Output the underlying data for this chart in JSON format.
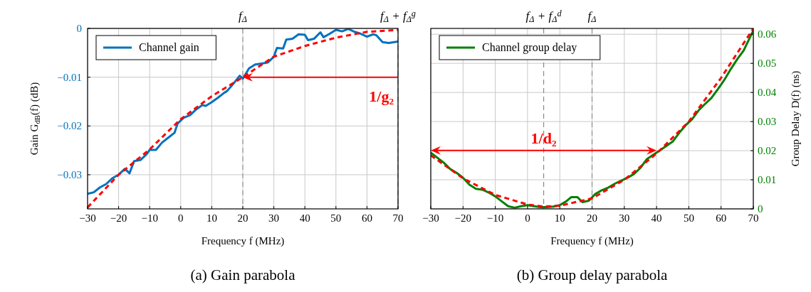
{
  "chart_data": [
    {
      "type": "line",
      "ylabel": "Gain G$_{dB}$(f) (dB)",
      "xlabel": "Frequency f (MHz)",
      "xlim": [
        -30,
        70
      ],
      "ylim": [
        -0.037,
        0
      ],
      "xticks": [
        {
          "value": -30,
          "label": "−30"
        },
        {
          "value": -20,
          "label": "−20"
        },
        {
          "value": -10,
          "label": "−10"
        },
        0,
        10,
        20,
        30,
        40,
        50,
        60,
        70
      ],
      "yticks": [
        {
          "value": -0.03,
          "label": "−0.03"
        },
        {
          "value": -0.02,
          "label": "−0.02"
        },
        {
          "value": -0.01,
          "label": "−0.01"
        },
        0
      ],
      "grid": true,
      "legend": "top left",
      "ref_lines": [
        {
          "axis": "x",
          "value": 20,
          "label": "f$_{Δ}$",
          "color": "#999999",
          "line_style": "dashed"
        },
        {
          "axis": "x",
          "value": 70,
          "label": "f$_{Δ}$ + f$_{Δ}$$^{g}$",
          "color": "#999999",
          "line_style": "dashed"
        }
      ],
      "annotations": [
        "(a) Gain parabola",
        {
          "text": "1/g₂",
          "x": 20,
          "y": -0.01
        }
      ],
      "series": [
        {
          "name": "Channel gain",
          "color": "#0072bd",
          "line_style": "solid",
          "x": [
            -30,
            -28,
            -26,
            -24,
            -22,
            -20,
            -18,
            -16.5,
            -15,
            -13,
            -11,
            -10,
            -8,
            -6,
            -4,
            -2,
            -1,
            1,
            3,
            5,
            7,
            8,
            10,
            12,
            14,
            15,
            17,
            19,
            20,
            22,
            24,
            26,
            28,
            30,
            31,
            33,
            34,
            36,
            38,
            40,
            41,
            43,
            45,
            46,
            48,
            50,
            52,
            54,
            56,
            58,
            60,
            62,
            63,
            65,
            67,
            70
          ],
          "values": [
            -0.0339,
            -0.0336,
            -0.0326,
            -0.0319,
            -0.0307,
            -0.03,
            -0.0288,
            -0.0297,
            -0.0272,
            -0.027,
            -0.0258,
            -0.0249,
            -0.0249,
            -0.0234,
            -0.0224,
            -0.0214,
            -0.0195,
            -0.0183,
            -0.0178,
            -0.0166,
            -0.0157,
            -0.0159,
            -0.0151,
            -0.0142,
            -0.0132,
            -0.0128,
            -0.0113,
            -0.0097,
            -0.0103,
            -0.0082,
            -0.0074,
            -0.0072,
            -0.007,
            -0.0058,
            -0.004,
            -0.0041,
            -0.0023,
            -0.0021,
            -0.0012,
            -0.0013,
            -0.0024,
            -0.0021,
            -0.0008,
            -0.0018,
            -0.0011,
            -0.0003,
            -0.0006,
            -0.0001,
            -0.0007,
            -0.0011,
            -0.0017,
            -0.0012,
            -0.0014,
            -0.0028,
            -0.003,
            -0.0027
          ]
        },
        {
          "color": "#ff0000",
          "line_style": "dashed",
          "x": [
            -30,
            -20,
            -10,
            0,
            10,
            20,
            30,
            40,
            50,
            60,
            70
          ],
          "values": [
            -0.0367,
            -0.03,
            -0.0248,
            -0.0186,
            -0.0139,
            -0.01,
            -0.0058,
            -0.0036,
            -0.0019,
            -0.0007,
            -0.0003
          ]
        }
      ]
    },
    {
      "type": "line",
      "ylabel": "Group Delay D(f) (ns)",
      "xlabel": "Frequency f (MHz)",
      "xlim": [
        -30,
        70
      ],
      "ylim": [
        0,
        0.062
      ],
      "xticks": [
        {
          "value": -30,
          "label": "−30"
        },
        {
          "value": -20,
          "label": "−20"
        },
        {
          "value": -10,
          "label": "−10"
        },
        0,
        10,
        20,
        30,
        40,
        50,
        60,
        70
      ],
      "yticks": [
        0,
        0.01,
        0.02,
        0.03,
        0.04,
        0.05,
        0.06
      ],
      "grid": true,
      "legend": "top left",
      "ref_lines": [
        {
          "axis": "x",
          "value": 5,
          "label": "f$_{Δ}$ + f$_{Δ}$$^{d}$",
          "color": "#888888",
          "line_style": "dashed"
        },
        {
          "axis": "x",
          "value": 20,
          "label": "f$_{Δ}$",
          "color": "#888888",
          "line_style": "dashed"
        }
      ],
      "annotations": [
        "(b) Group delay parabola",
        {
          "text": "1/d₂",
          "x": 5,
          "y": 0.0245
        }
      ],
      "series": [
        {
          "name": "Channel group delay",
          "color": "#008000",
          "line_style": "solid",
          "x": [
            -30,
            -28,
            -26,
            -24,
            -22,
            -20,
            -18,
            -16,
            -14,
            -12,
            -10,
            -8,
            -6,
            -4,
            -2,
            0,
            2,
            4,
            6,
            8,
            10,
            12,
            13.5,
            15.5,
            17,
            19,
            21,
            23,
            25,
            27,
            29,
            31,
            33,
            35,
            37,
            39,
            41,
            43,
            45,
            47,
            49,
            51,
            53,
            55,
            57,
            59,
            61,
            63,
            65,
            67,
            70
          ],
          "values": [
            0.0193,
            0.0176,
            0.0159,
            0.0137,
            0.0124,
            0.0107,
            0.0083,
            0.0069,
            0.0066,
            0.0056,
            0.0043,
            0.0026,
            0.0009,
            0.0004,
            0.0009,
            0.0013,
            0.0009,
            0.0006,
            0.0006,
            0.0008,
            0.0013,
            0.0026,
            0.004,
            0.004,
            0.0023,
            0.0028,
            0.0051,
            0.0064,
            0.0073,
            0.0086,
            0.0097,
            0.0107,
            0.012,
            0.0141,
            0.0171,
            0.0186,
            0.0201,
            0.0216,
            0.0231,
            0.0261,
            0.0287,
            0.0308,
            0.0338,
            0.036,
            0.0381,
            0.0411,
            0.0443,
            0.048,
            0.0514,
            0.0544,
            0.0613
          ]
        },
        {
          "color": "#ff0000",
          "line_style": "dashed",
          "x": [
            -30,
            -20,
            -10,
            0,
            5,
            10,
            20,
            30,
            40,
            50,
            60,
            70
          ],
          "values": [
            0.0184,
            0.0105,
            0.0048,
            0.0015,
            0.0008,
            0.0011,
            0.0036,
            0.01,
            0.019,
            0.03,
            0.045,
            0.062
          ]
        }
      ]
    }
  ]
}
